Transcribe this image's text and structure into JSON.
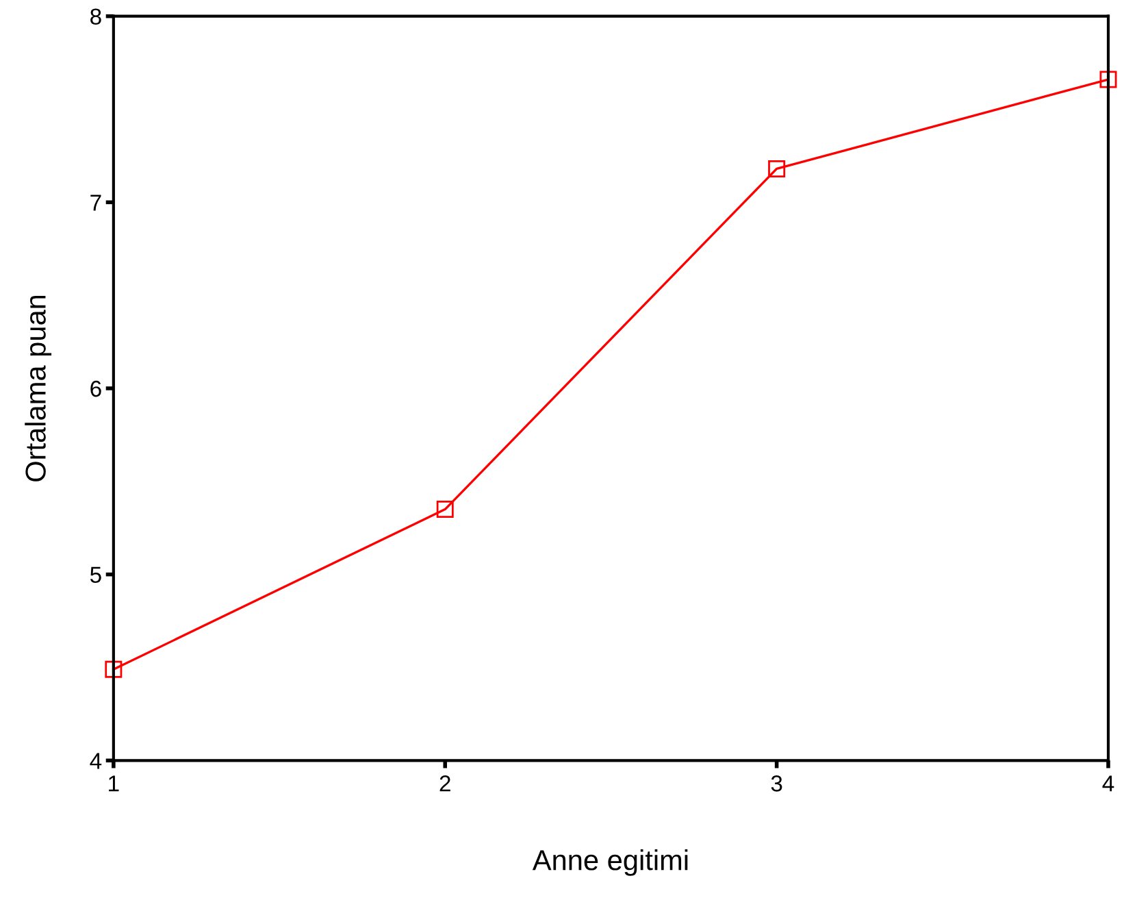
{
  "chart_data": {
    "type": "line",
    "xlabel": "Anne egitimi",
    "ylabel": "Ortalama puan",
    "x": [
      1,
      2,
      3,
      4
    ],
    "series": [
      {
        "color": "#ff0000",
        "values": [
          4.49,
          5.35,
          7.18,
          7.66
        ]
      }
    ],
    "xlim": [
      1,
      4
    ],
    "xticks": [
      1,
      2,
      3,
      4
    ],
    "ylim": [
      4,
      8
    ],
    "yticks": [
      4,
      5,
      6,
      7,
      8
    ],
    "marker": "square",
    "line_style": "solid",
    "grid": false,
    "legend": false
  }
}
